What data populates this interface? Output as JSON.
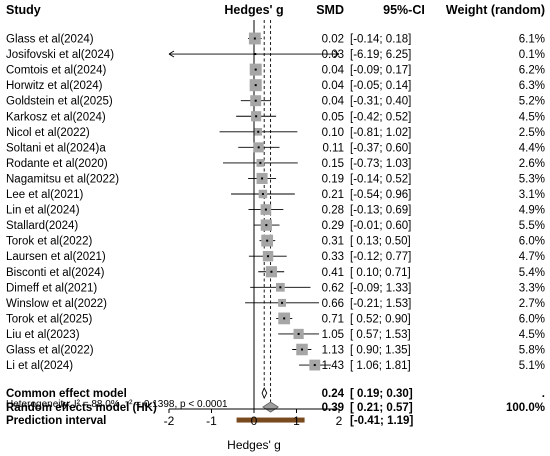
{
  "headers": {
    "study": "Study",
    "hedges": "Hedges' g",
    "smd": "SMD",
    "ci": "95%-CI",
    "weight": "Weight (random)"
  },
  "chart_data": {
    "type": "forest",
    "xlabel": "Hedges' g",
    "xlim": [
      -2,
      2
    ],
    "xticks": [
      -2,
      -1,
      0,
      1,
      2
    ],
    "reference_line": 0,
    "studies": [
      {
        "name": "Glass et al(2024)",
        "smd": 0.02,
        "lo": -0.14,
        "hi": 0.18,
        "smd_text": "0.02",
        "ci_text": "[-0.14; 0.18]",
        "weight": 6.1,
        "weight_text": "6.1%"
      },
      {
        "name": "Josifovski et al(2024)",
        "smd": 0.03,
        "lo": -6.19,
        "hi": 6.25,
        "smd_text": "0.03",
        "ci_text": "[-6.19; 6.25]",
        "weight": 0.1,
        "weight_text": "0.1%"
      },
      {
        "name": "Comtois et al(2024)",
        "smd": 0.04,
        "lo": -0.09,
        "hi": 0.17,
        "smd_text": "0.04",
        "ci_text": "[-0.09; 0.17]",
        "weight": 6.2,
        "weight_text": "6.2%"
      },
      {
        "name": "Horwitz et al(2024)",
        "smd": 0.04,
        "lo": -0.05,
        "hi": 0.14,
        "smd_text": "0.04",
        "ci_text": "[-0.05; 0.14]",
        "weight": 6.3,
        "weight_text": "6.3%"
      },
      {
        "name": "Goldstein et al(2025)",
        "smd": 0.04,
        "lo": -0.31,
        "hi": 0.4,
        "smd_text": "0.04",
        "ci_text": "[-0.31; 0.40]",
        "weight": 5.2,
        "weight_text": "5.2%"
      },
      {
        "name": "Karkosz et al(2024)",
        "smd": 0.05,
        "lo": -0.42,
        "hi": 0.52,
        "smd_text": "0.05",
        "ci_text": "[-0.42; 0.52]",
        "weight": 4.5,
        "weight_text": "4.5%"
      },
      {
        "name": "Nicol et al(2022)",
        "smd": 0.1,
        "lo": -0.81,
        "hi": 1.02,
        "smd_text": "0.10",
        "ci_text": "[-0.81; 1.02]",
        "weight": 2.5,
        "weight_text": "2.5%"
      },
      {
        "name": "Soltani et al(2024)a",
        "smd": 0.11,
        "lo": -0.37,
        "hi": 0.6,
        "smd_text": "0.11",
        "ci_text": "[-0.37; 0.60]",
        "weight": 4.4,
        "weight_text": "4.4%"
      },
      {
        "name": "Rodante et al(2020)",
        "smd": 0.15,
        "lo": -0.73,
        "hi": 1.03,
        "smd_text": "0.15",
        "ci_text": "[-0.73; 1.03]",
        "weight": 2.6,
        "weight_text": "2.6%"
      },
      {
        "name": "Nagamitsu et al(2022)",
        "smd": 0.19,
        "lo": -0.14,
        "hi": 0.52,
        "smd_text": "0.19",
        "ci_text": "[-0.14; 0.52]",
        "weight": 5.3,
        "weight_text": "5.3%"
      },
      {
        "name": "Lee et al(2021)",
        "smd": 0.21,
        "lo": -0.54,
        "hi": 0.96,
        "smd_text": "0.21",
        "ci_text": "[-0.54; 0.96]",
        "weight": 3.1,
        "weight_text": "3.1%"
      },
      {
        "name": "Lin et al(2024)",
        "smd": 0.28,
        "lo": -0.13,
        "hi": 0.69,
        "smd_text": "0.28",
        "ci_text": "[-0.13; 0.69]",
        "weight": 4.9,
        "weight_text": "4.9%"
      },
      {
        "name": "Stallard(2024)",
        "smd": 0.29,
        "lo": -0.01,
        "hi": 0.6,
        "smd_text": "0.29",
        "ci_text": "[-0.01; 0.60]",
        "weight": 5.5,
        "weight_text": "5.5%"
      },
      {
        "name": "Torok et al(2022)",
        "smd": 0.31,
        "lo": 0.13,
        "hi": 0.5,
        "smd_text": "0.31",
        "ci_text": "[ 0.13; 0.50]",
        "weight": 6.0,
        "weight_text": "6.0%"
      },
      {
        "name": "Laursen et al(2021)",
        "smd": 0.33,
        "lo": -0.12,
        "hi": 0.77,
        "smd_text": "0.33",
        "ci_text": "[-0.12; 0.77]",
        "weight": 4.7,
        "weight_text": "4.7%"
      },
      {
        "name": "Bisconti et al(2024)",
        "smd": 0.41,
        "lo": 0.1,
        "hi": 0.71,
        "smd_text": "0.41",
        "ci_text": "[ 0.10; 0.71]",
        "weight": 5.4,
        "weight_text": "5.4%"
      },
      {
        "name": "Dimeff et al(2021)",
        "smd": 0.62,
        "lo": -0.09,
        "hi": 1.33,
        "smd_text": "0.62",
        "ci_text": "[-0.09; 1.33]",
        "weight": 3.3,
        "weight_text": "3.3%"
      },
      {
        "name": "Winslow et al(2022)",
        "smd": 0.66,
        "lo": -0.21,
        "hi": 1.53,
        "smd_text": "0.66",
        "ci_text": "[-0.21; 1.53]",
        "weight": 2.7,
        "weight_text": "2.7%"
      },
      {
        "name": "Torok et al(2025)",
        "smd": 0.71,
        "lo": 0.52,
        "hi": 0.9,
        "smd_text": "0.71",
        "ci_text": "[ 0.52; 0.90]",
        "weight": 6.0,
        "weight_text": "6.0%"
      },
      {
        "name": "Liu et al(2023)",
        "smd": 1.05,
        "lo": 0.57,
        "hi": 1.53,
        "smd_text": "1.05",
        "ci_text": "[ 0.57; 1.53]",
        "weight": 4.5,
        "weight_text": "4.5%"
      },
      {
        "name": "Glass et al(2022)",
        "smd": 1.13,
        "lo": 0.9,
        "hi": 1.35,
        "smd_text": "1.13",
        "ci_text": "[ 0.90; 1.35]",
        "weight": 5.8,
        "weight_text": "5.8%"
      },
      {
        "name": "Li et al(2024)",
        "smd": 1.43,
        "lo": 1.06,
        "hi": 1.81,
        "smd_text": "1.43",
        "ci_text": "[ 1.06; 1.81]",
        "weight": 5.1,
        "weight_text": "5.1%"
      }
    ],
    "summaries": [
      {
        "name": "Common effect model",
        "smd": 0.24,
        "lo": 0.19,
        "hi": 0.3,
        "smd_text": "0.24",
        "ci_text": "[ 0.19; 0.30]",
        "weight_text": "."
      },
      {
        "name": "Random effects model (HK)",
        "smd": 0.39,
        "lo": 0.21,
        "hi": 0.57,
        "smd_text": "0.39",
        "ci_text": "[ 0.21; 0.57]",
        "weight_text": "100.0%"
      }
    ],
    "prediction": {
      "name": "Prediction interval",
      "lo": -0.41,
      "hi": 1.19,
      "ci_text": "[-0.41; 1.19]"
    },
    "heterogeneity": "Heterogeneity: I² = 88.0%, τ² = 0.1398, p < 0.0001",
    "colors": {
      "square": "#a6a6a6",
      "common_diamond": "#000000",
      "random_diamond": "#9e9e9e",
      "prediction_bar": "#7a4a1f",
      "line": "#000000"
    }
  }
}
